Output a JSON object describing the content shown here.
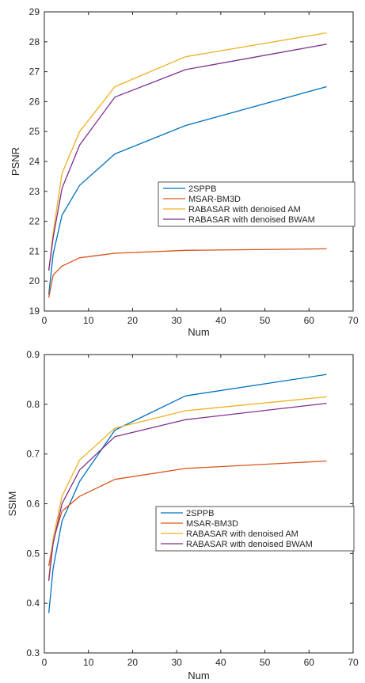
{
  "chart_data": [
    {
      "type": "line",
      "xlabel": "Num",
      "ylabel": "PSNR",
      "xlim": [
        0,
        70
      ],
      "ylim": [
        19,
        29
      ],
      "xticks": [
        "0",
        "10",
        "20",
        "30",
        "40",
        "50",
        "60",
        "70"
      ],
      "yticks": [
        "19",
        "20",
        "21",
        "22",
        "23",
        "24",
        "25",
        "26",
        "27",
        "28",
        "29"
      ],
      "grid": false,
      "legend_position": "lower-right",
      "x": [
        1,
        2,
        4,
        8,
        16,
        32,
        64
      ],
      "series": [
        {
          "name": "2SPPB",
          "color": "#0072BD",
          "values": [
            19.55,
            20.9,
            22.2,
            23.2,
            24.25,
            25.2,
            26.5
          ]
        },
        {
          "name": "MSAR-BM3D",
          "color": "#D95319",
          "values": [
            19.45,
            20.2,
            20.5,
            20.78,
            20.93,
            21.03,
            21.08
          ]
        },
        {
          "name": "RABASAR with denoised AM",
          "color": "#EDB120",
          "values": [
            20.35,
            21.6,
            23.6,
            25.0,
            26.5,
            27.5,
            28.3
          ]
        },
        {
          "name": "RABASAR with denoised BWAM",
          "color": "#7E2F8E",
          "values": [
            20.35,
            21.45,
            23.1,
            24.55,
            26.15,
            27.07,
            27.92
          ]
        }
      ]
    },
    {
      "type": "line",
      "xlabel": "Num",
      "ylabel": "SSIM",
      "xlim": [
        0,
        70
      ],
      "ylim": [
        0.3,
        0.9
      ],
      "xticks": [
        "0",
        "10",
        "20",
        "30",
        "40",
        "50",
        "60",
        "70"
      ],
      "yticks": [
        "0.3",
        "0.4",
        "0.5",
        "0.6",
        "0.7",
        "0.8",
        "0.9"
      ],
      "grid": false,
      "legend_position": "lower-right",
      "x": [
        1,
        2,
        4,
        8,
        16,
        32,
        64
      ],
      "series": [
        {
          "name": "2SPPB",
          "color": "#0072BD",
          "values": [
            0.38,
            0.47,
            0.565,
            0.645,
            0.748,
            0.817,
            0.86
          ]
        },
        {
          "name": "MSAR-BM3D",
          "color": "#D95319",
          "values": [
            0.475,
            0.525,
            0.585,
            0.615,
            0.649,
            0.671,
            0.686
          ]
        },
        {
          "name": "RABASAR with denoised AM",
          "color": "#EDB120",
          "values": [
            0.45,
            0.53,
            0.615,
            0.688,
            0.752,
            0.787,
            0.815
          ]
        },
        {
          "name": "RABASAR with denoised BWAM",
          "color": "#7E2F8E",
          "values": [
            0.445,
            0.52,
            0.6,
            0.668,
            0.735,
            0.769,
            0.802
          ]
        }
      ]
    }
  ]
}
